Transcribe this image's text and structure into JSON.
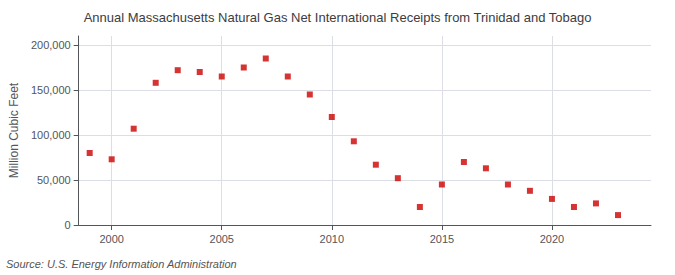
{
  "chart_data": {
    "type": "scatter",
    "title": "Annual Massachusetts Natural Gas Net International Receipts from Trinidad and Tobago",
    "ylabel": "Million Cubic Feet",
    "annotation": "Source: U.S. Energy Information Administration",
    "x": [
      1999,
      2000,
      2001,
      2002,
      2003,
      2004,
      2005,
      2006,
      2007,
      2008,
      2009,
      2010,
      2011,
      2012,
      2013,
      2014,
      2015,
      2016,
      2017,
      2018,
      2019,
      2020,
      2021,
      2022,
      2023
    ],
    "values": [
      80000,
      73000,
      107000,
      158000,
      172000,
      170000,
      165000,
      175000,
      185000,
      165000,
      145000,
      120000,
      93000,
      67000,
      52000,
      20000,
      45000,
      70000,
      63000,
      45000,
      38000,
      29000,
      20000,
      24000,
      11000
    ],
    "color": "#cc0000",
    "marker": "square",
    "xlim": [
      1998.5,
      2024.5
    ],
    "xticks": [
      2000,
      2005,
      2010,
      2015,
      2020
    ],
    "ylim": [
      0,
      210000
    ],
    "yticks": [
      0,
      {
        "value": 50000,
        "label": "50,000"
      },
      {
        "value": 100000,
        "label": "100,000"
      },
      {
        "value": 150000,
        "label": "150,000"
      },
      {
        "value": 200000,
        "label": "200,000"
      }
    ],
    "grid": true
  }
}
